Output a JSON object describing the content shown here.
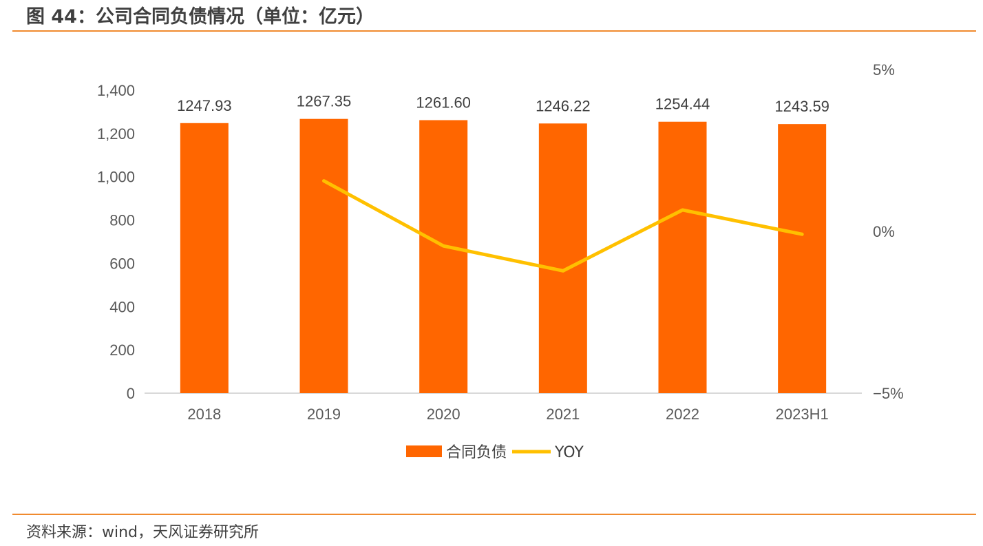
{
  "title": "图 44：公司合同负债情况（单位：亿元）",
  "source": "资料来源：wind，天风证券研究所",
  "colors": {
    "bar": "#FF6600",
    "line": "#FFC000",
    "rule": "#F08A2E"
  },
  "chart_data": {
    "type": "bar",
    "categories": [
      "2018",
      "2019",
      "2020",
      "2021",
      "2022",
      "2023H1"
    ],
    "series": [
      {
        "name": "合同负债",
        "type": "bar",
        "axis": "left",
        "values": [
          1247.93,
          1267.35,
          1261.6,
          1246.22,
          1254.44,
          1243.59
        ],
        "labels": [
          "1247.93",
          "1267.35",
          "1261.60",
          "1246.22",
          "1254.44",
          "1243.59"
        ]
      },
      {
        "name": "YOY",
        "type": "line",
        "axis": "right",
        "values": [
          null,
          1.56,
          -0.45,
          -1.22,
          0.66,
          -0.09
        ]
      }
    ],
    "y_left": {
      "ylim": [
        0,
        1400
      ],
      "ticks": [
        0,
        200,
        400,
        600,
        800,
        1000,
        1200,
        1400
      ],
      "tick_labels": [
        "0",
        "200",
        "400",
        "600",
        "800",
        "1,000",
        "1,200",
        "1,400"
      ]
    },
    "y_right": {
      "ylim": [
        -5,
        5
      ],
      "ticks": [
        -5,
        0,
        5
      ],
      "tick_labels": [
        "−5%",
        "0%",
        "5%"
      ]
    },
    "legend": {
      "position": "bottom"
    }
  }
}
